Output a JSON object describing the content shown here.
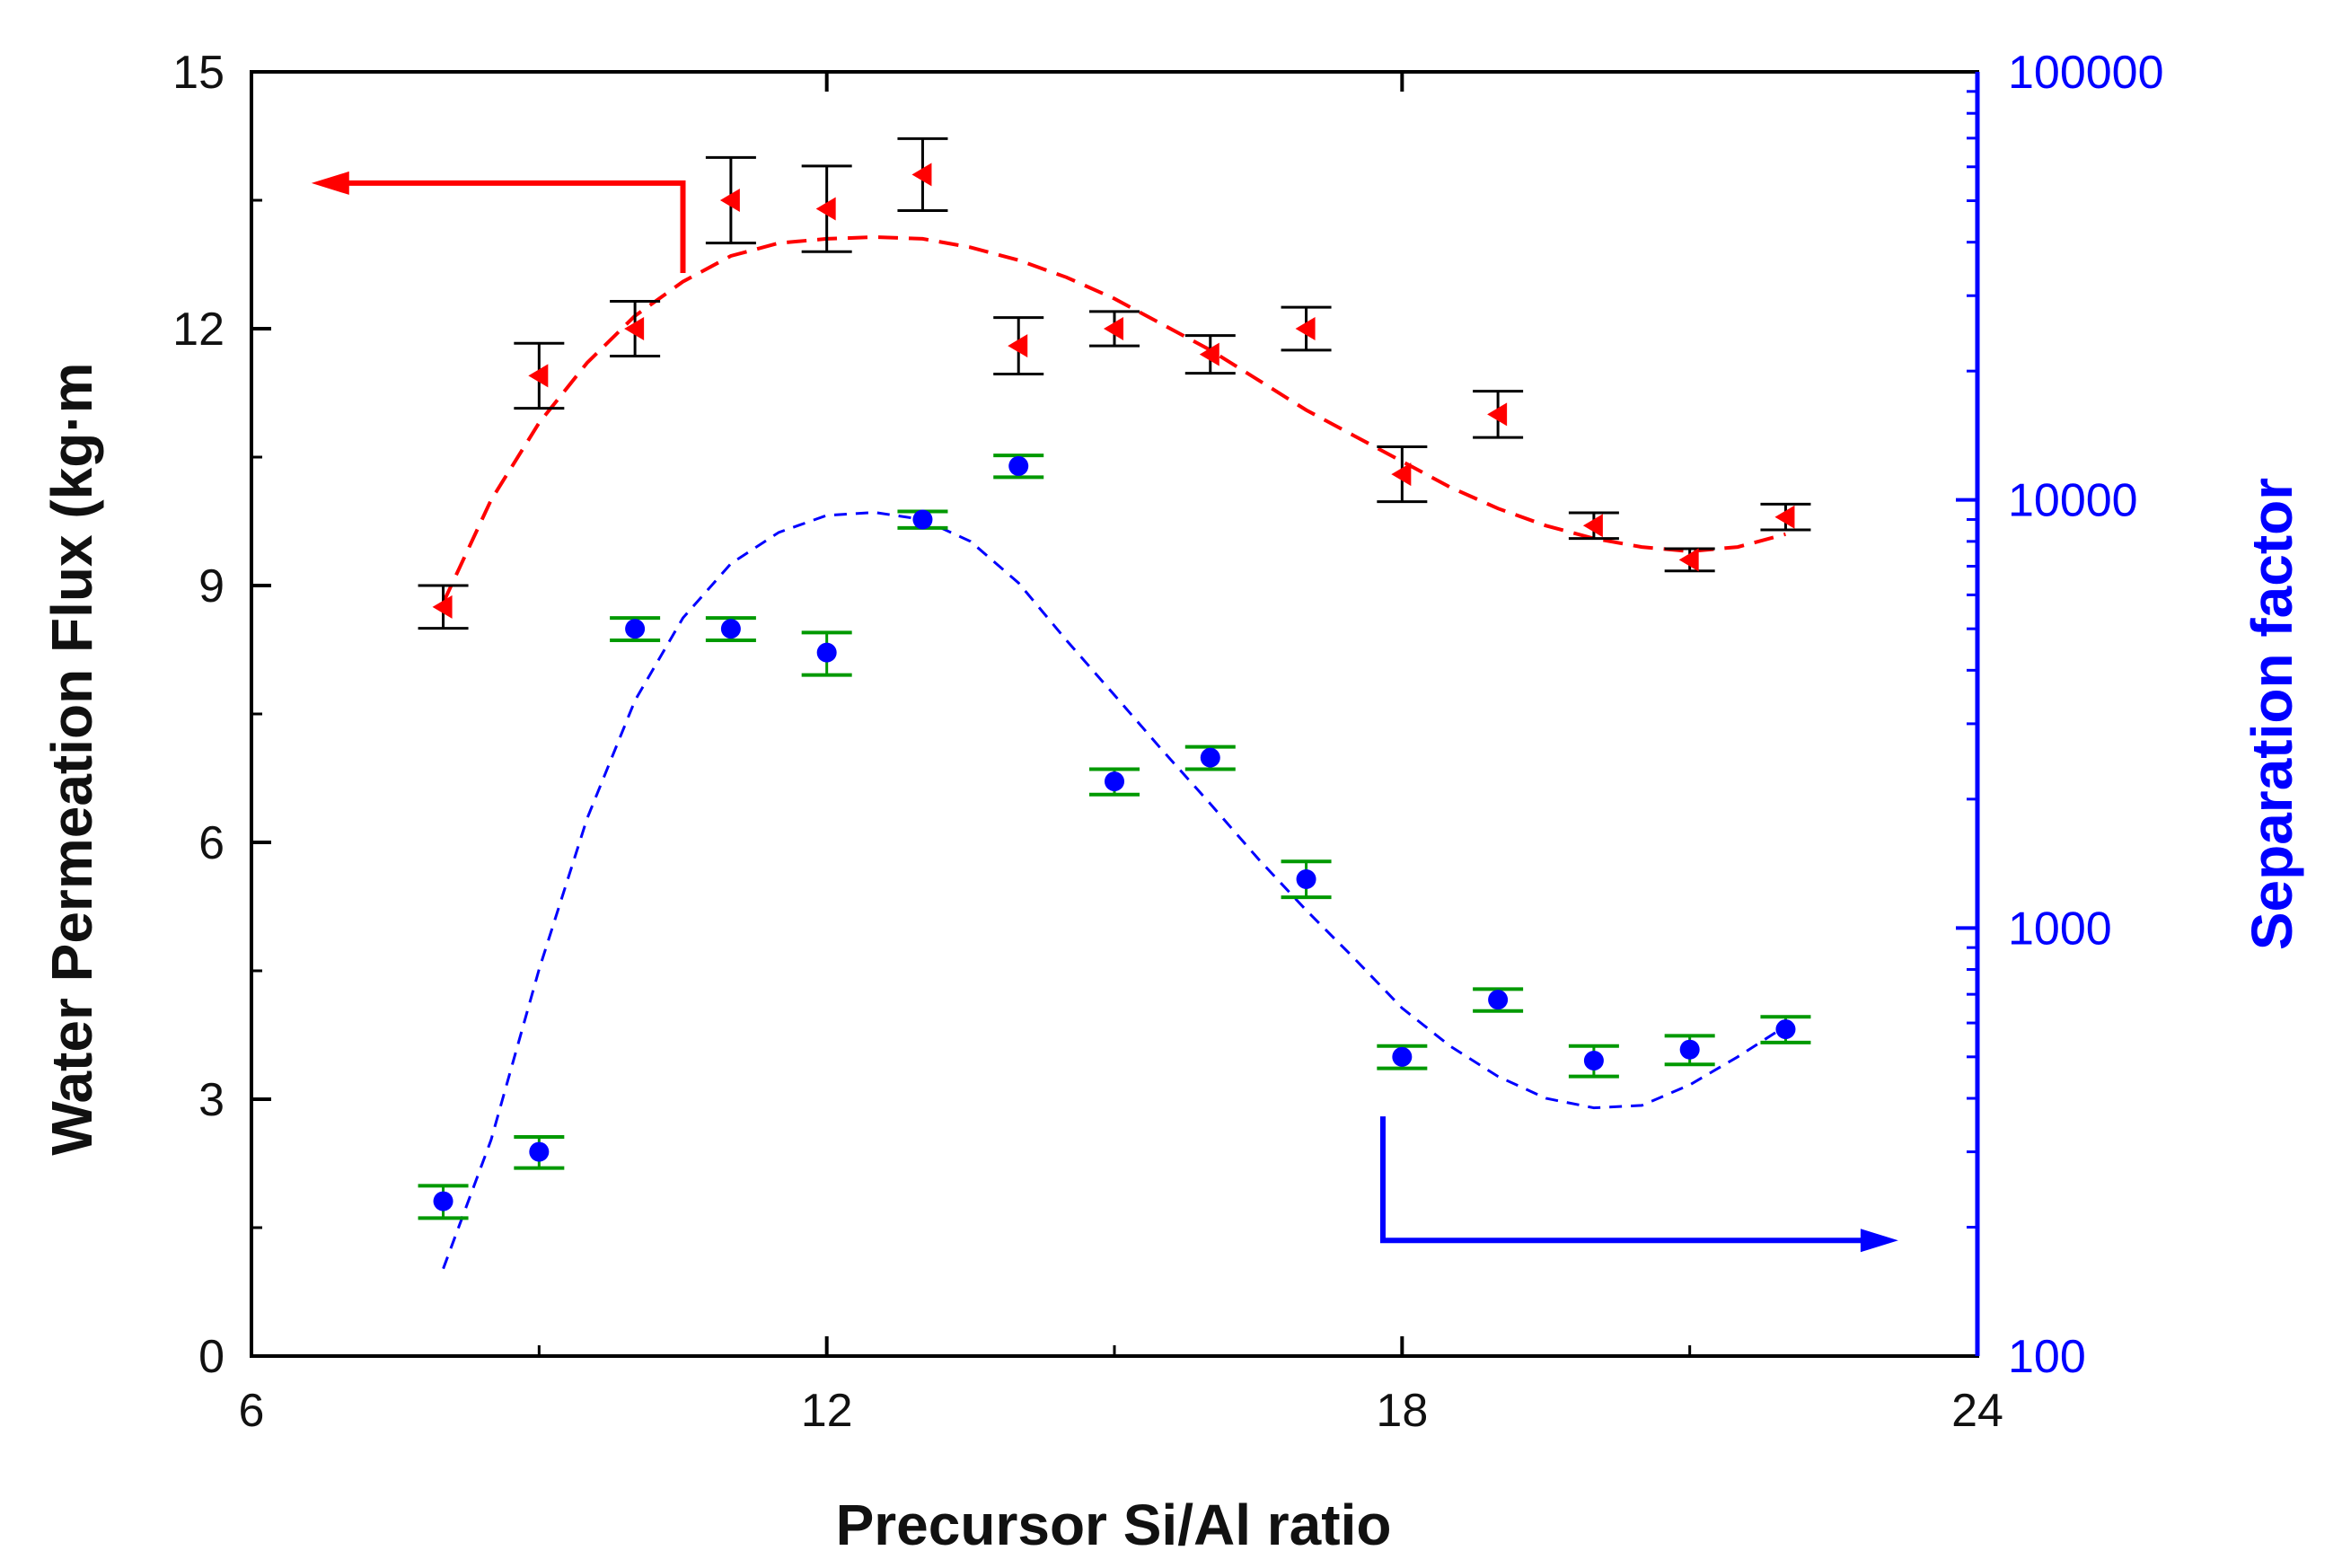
{
  "chart_data": {
    "type": "scatter",
    "xlabel": "Precursor Si/Al ratio",
    "ylabel_left": "Water Permeation Flux (kg·m",
    "ylabel_right": "Separation factor",
    "xlim": [
      6,
      24
    ],
    "ylim_left": [
      0,
      15
    ],
    "ylim_right": [
      100,
      100000
    ],
    "y_right_scale": "log",
    "x_ticks": [
      6,
      12,
      18,
      24
    ],
    "x_tick_labels": [
      "6",
      "12",
      "18",
      "24"
    ],
    "y_left_ticks": [
      0,
      3,
      6,
      9,
      12,
      15
    ],
    "y_left_tick_labels": [
      "0",
      "3",
      "6",
      "9",
      "12",
      "15"
    ],
    "y_right_ticks": [
      100,
      1000,
      10000,
      100000
    ],
    "y_right_tick_labels": [
      "100",
      "1000",
      "10000",
      "100000"
    ],
    "colors": {
      "flux": "#ff0000",
      "flux_error": "#000000",
      "separation": "#0000ff",
      "separation_error": "#009900",
      "right_axis": "#0000ff",
      "left_axis": "#000000"
    },
    "series": [
      {
        "name": "Water Permeation Flux",
        "axis": "left",
        "marker": "left-triangle",
        "x": [
          8,
          9,
          10,
          11,
          12,
          13,
          14,
          15,
          16,
          17,
          18,
          19,
          20,
          21,
          22
        ],
        "y": [
          8.75,
          11.45,
          12.0,
          13.5,
          13.4,
          13.8,
          11.8,
          12.0,
          11.7,
          12.0,
          10.3,
          11.0,
          9.7,
          9.3,
          9.8
        ],
        "err": [
          0.25,
          0.38,
          0.32,
          0.5,
          0.5,
          0.42,
          0.33,
          0.2,
          0.22,
          0.25,
          0.32,
          0.27,
          0.15,
          0.13,
          0.15
        ]
      },
      {
        "name": "Separation factor",
        "axis": "right",
        "marker": "circle",
        "x": [
          8,
          9,
          10,
          11,
          12,
          13,
          14,
          15,
          16,
          17,
          18,
          19,
          20,
          21,
          22
        ],
        "y": [
          230,
          300,
          5000,
          5000,
          4400,
          9000,
          12000,
          2200,
          2500,
          1300,
          500,
          680,
          490,
          520,
          580
        ],
        "err_low": [
          210,
          275,
          4700,
          4700,
          3900,
          8600,
          11300,
          2050,
          2350,
          1180,
          470,
          640,
          450,
          480,
          540
        ],
        "err_high": [
          250,
          325,
          5300,
          5300,
          4900,
          9400,
          12700,
          2350,
          2650,
          1430,
          530,
          720,
          530,
          560,
          620
        ]
      }
    ],
    "fits": [
      {
        "name": "flux-fit",
        "axis": "left",
        "style": "dashed",
        "x": [
          8.0,
          8.5,
          9.0,
          9.5,
          10.0,
          10.5,
          11.0,
          11.5,
          12.0,
          12.5,
          13.0,
          13.5,
          14.0,
          14.5,
          15.0,
          15.5,
          16.0,
          16.5,
          17.0,
          17.5,
          18.0,
          18.5,
          19.0,
          19.5,
          20.0,
          20.5,
          21.0,
          21.5,
          22.0
        ],
        "y": [
          8.8,
          10.0,
          10.9,
          11.6,
          12.15,
          12.55,
          12.85,
          13.0,
          13.05,
          13.07,
          13.05,
          12.95,
          12.8,
          12.6,
          12.35,
          12.05,
          11.75,
          11.4,
          11.05,
          10.75,
          10.45,
          10.15,
          9.9,
          9.7,
          9.55,
          9.45,
          9.4,
          9.45,
          9.6
        ]
      },
      {
        "name": "separation-fit",
        "axis": "right",
        "style": "dashed",
        "x": [
          8.0,
          8.5,
          9.0,
          9.5,
          10.0,
          10.5,
          11.0,
          11.5,
          12.0,
          12.5,
          13.0,
          13.5,
          14.0,
          14.5,
          15.0,
          15.5,
          16.0,
          16.5,
          17.0,
          17.5,
          18.0,
          18.5,
          19.0,
          19.5,
          20.0,
          20.5,
          21.0,
          21.5,
          22.0
        ],
        "y": [
          160,
          320,
          800,
          1800,
          3400,
          5300,
          7100,
          8400,
          9200,
          9350,
          9000,
          8000,
          6400,
          4700,
          3500,
          2600,
          1950,
          1450,
          1100,
          850,
          650,
          530,
          450,
          400,
          380,
          385,
          430,
          500,
          590
        ]
      }
    ],
    "annotations": [
      {
        "name": "left-axis-arrow",
        "color": "#ff0000",
        "direction": "left",
        "corner_x": 10.5,
        "corner_y": 13.7,
        "start_y": 12.65,
        "end_x": 7.0
      },
      {
        "name": "right-axis-arrow",
        "color": "#0000ff",
        "direction": "right",
        "corner_x": 17.8,
        "corner_y": 1.35,
        "start_y": 2.8,
        "end_x": 22.8
      }
    ]
  }
}
